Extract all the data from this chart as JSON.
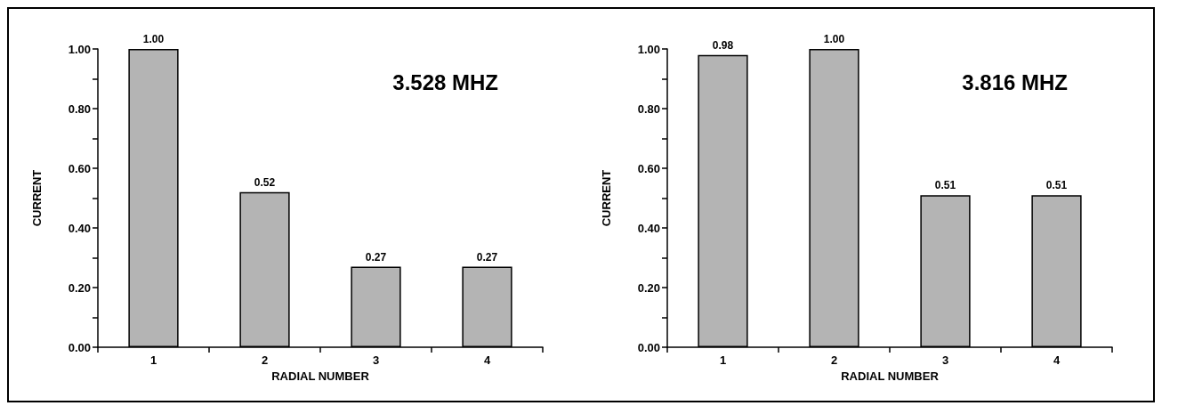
{
  "chart_data": [
    {
      "type": "bar",
      "xlabel": "RADIAL NUMBER",
      "ylabel": "CURRENT",
      "annotations": [
        "3.528 MHZ"
      ],
      "categories": [
        "1",
        "2",
        "3",
        "4"
      ],
      "values": [
        1.0,
        0.52,
        0.27,
        0.27
      ],
      "value_labels": [
        "1.00",
        "0.52",
        "0.27",
        "0.27"
      ],
      "color": "#b4b4b4",
      "ylim": [
        0,
        1
      ],
      "yticks": [
        {
          "value": 0,
          "label": "0.00"
        },
        {
          "value": 0.1,
          "label": null
        },
        {
          "value": 0.2,
          "label": "0.20"
        },
        {
          "value": 0.3,
          "label": null
        },
        {
          "value": 0.4,
          "label": "0.40"
        },
        {
          "value": 0.5,
          "label": null
        },
        {
          "value": 0.6,
          "label": "0.60"
        },
        {
          "value": 0.7,
          "label": null
        },
        {
          "value": 0.8,
          "label": "0.80"
        },
        {
          "value": 0.9,
          "label": null
        },
        {
          "value": 1,
          "label": "1.00"
        }
      ],
      "grid": false
    },
    {
      "type": "bar",
      "xlabel": "RADIAL NUMBER",
      "ylabel": "CURRENT",
      "annotations": [
        "3.816 MHZ"
      ],
      "categories": [
        "1",
        "2",
        "3",
        "4"
      ],
      "values": [
        0.98,
        1.0,
        0.51,
        0.51
      ],
      "value_labels": [
        "0.98",
        "1.00",
        "0.51",
        "0.51"
      ],
      "color": "#b4b4b4",
      "ylim": [
        0,
        1
      ],
      "yticks": [
        {
          "value": 0,
          "label": "0.00"
        },
        {
          "value": 0.1,
          "label": null
        },
        {
          "value": 0.2,
          "label": "0.20"
        },
        {
          "value": 0.3,
          "label": null
        },
        {
          "value": 0.4,
          "label": "0.40"
        },
        {
          "value": 0.5,
          "label": null
        },
        {
          "value": 0.6,
          "label": "0.60"
        },
        {
          "value": 0.7,
          "label": null
        },
        {
          "value": 0.8,
          "label": "0.80"
        },
        {
          "value": 0.9,
          "label": null
        },
        {
          "value": 1,
          "label": "1.00"
        }
      ],
      "grid": false
    }
  ]
}
